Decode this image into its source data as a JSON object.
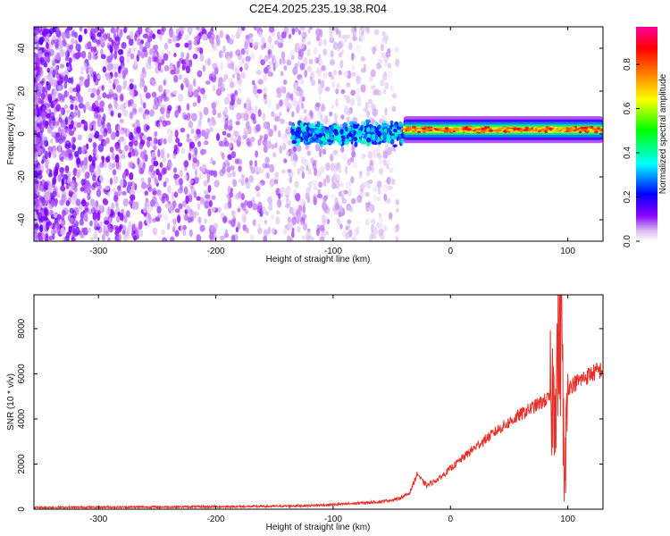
{
  "figure": {
    "title": "C2E4.2025.235.19.38.R04"
  },
  "chart_data": [
    {
      "type": "heatmap",
      "title": "C2E4.2025.235.19.38.R04",
      "xlabel": "Height of straight line (km)",
      "ylabel": "Frequency (Hz)",
      "xlim": [
        -355,
        130
      ],
      "ylim": [
        -50,
        50
      ],
      "xticks": [
        -300,
        -200,
        -100,
        0,
        100
      ],
      "yticks": [
        -40,
        -20,
        0,
        20,
        40
      ],
      "grid": false,
      "colorbar": {
        "label": "Normalized spectral amplitude",
        "range": [
          0,
          0.97
        ],
        "ticks": [
          0.0,
          0.2,
          0.4,
          0.6,
          0.8
        ],
        "colormap": [
          "#ffffff",
          "#d8b8f0",
          "#8b00ff",
          "#0000ff",
          "#00ffff",
          "#00ff00",
          "#ffff00",
          "#ff8000",
          "#ff0000",
          "#ff00a0"
        ]
      },
      "features": [
        {
          "name": "noise",
          "x_range": [
            -355,
            -45
          ],
          "frequency_range": [
            -50,
            50
          ],
          "amplitude": 0.15
        },
        {
          "name": "signal-onset",
          "x_range": [
            -135,
            -40
          ],
          "frequency_range": [
            -5,
            5
          ],
          "amplitude": 0.3
        },
        {
          "name": "signal-line",
          "x_range": [
            -40,
            130
          ],
          "frequency_center": 2,
          "frequency_width": 3,
          "amplitude": 0.9
        }
      ]
    },
    {
      "type": "line",
      "xlabel": "Height of straight line (km)",
      "ylabel": "SNR (10 * v/v)",
      "xlim": [
        -355,
        130
      ],
      "ylim": [
        0,
        9500
      ],
      "xticks": [
        -300,
        -200,
        -100,
        0,
        100
      ],
      "yticks": [
        0,
        2000,
        4000,
        6000,
        8000
      ],
      "color": "#e8302a",
      "grid": false,
      "series": [
        {
          "x": [
            -355,
            -300,
            -250,
            -200,
            -150,
            -120,
            -100,
            -80,
            -60,
            -45,
            -35,
            -28,
            -25,
            -20,
            -10,
            0,
            10,
            20,
            30,
            40,
            50,
            60,
            70,
            80,
            88,
            92,
            95,
            97,
            100,
            110,
            120,
            130
          ],
          "values": [
            80,
            90,
            100,
            110,
            130,
            160,
            200,
            260,
            330,
            450,
            700,
            1600,
            1300,
            1050,
            1350,
            1800,
            2250,
            2700,
            3100,
            3500,
            3850,
            4200,
            4500,
            4800,
            5000,
            7000,
            9400,
            400,
            5400,
            5700,
            6000,
            6200
          ]
        }
      ]
    }
  ]
}
